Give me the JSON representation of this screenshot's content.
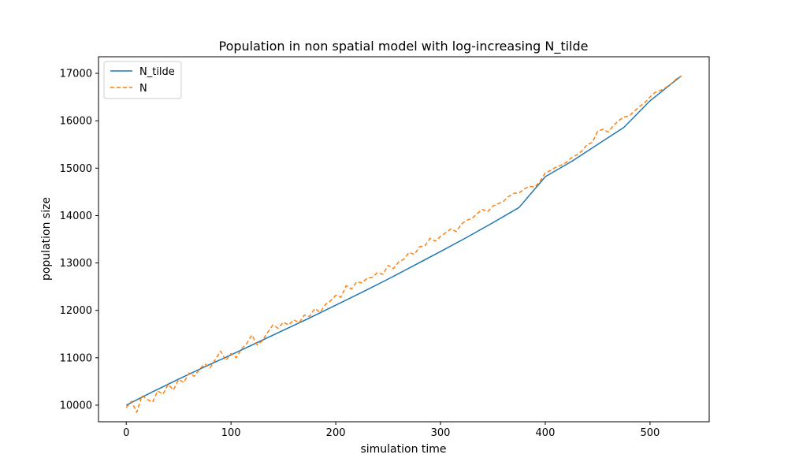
{
  "chart_data": {
    "type": "line",
    "title": "Population in non spatial model with log-increasing N_tilde",
    "xlabel": "simulation time",
    "ylabel": "population size",
    "xlim": [
      -26.5,
      556.5
    ],
    "ylim": [
      9650,
      17350
    ],
    "xticks": [
      0,
      100,
      200,
      300,
      400,
      500
    ],
    "yticks": [
      10000,
      11000,
      12000,
      13000,
      14000,
      15000,
      16000,
      17000
    ],
    "grid": false,
    "legend": {
      "position": "top-left"
    },
    "series": [
      {
        "name": "N_tilde",
        "color": "#1f77b4",
        "style": "solid",
        "x": [
          0,
          25,
          50,
          75,
          100,
          125,
          150,
          175,
          200,
          225,
          250,
          275,
          300,
          325,
          350,
          375,
          400,
          425,
          450,
          475,
          500,
          530
        ],
        "y": [
          10000,
          10280,
          10550,
          10810,
          11060,
          11320,
          11580,
          11840,
          12110,
          12380,
          12660,
          12950,
          13240,
          13540,
          13850,
          14170,
          14820,
          15140,
          15500,
          15860,
          16420,
          16950
        ]
      },
      {
        "name": "N",
        "color": "#ff7f0e",
        "style": "dashed",
        "x": [
          0,
          5,
          10,
          15,
          20,
          25,
          30,
          35,
          40,
          45,
          50,
          55,
          60,
          65,
          70,
          75,
          80,
          85,
          90,
          95,
          100,
          105,
          110,
          115,
          120,
          125,
          130,
          135,
          140,
          145,
          150,
          155,
          160,
          165,
          170,
          175,
          180,
          185,
          190,
          195,
          200,
          205,
          210,
          215,
          220,
          225,
          230,
          235,
          240,
          245,
          250,
          255,
          260,
          265,
          270,
          275,
          280,
          285,
          290,
          295,
          300,
          305,
          310,
          315,
          320,
          325,
          330,
          335,
          340,
          345,
          350,
          355,
          360,
          365,
          370,
          375,
          380,
          385,
          390,
          395,
          400,
          405,
          410,
          415,
          420,
          425,
          430,
          435,
          440,
          445,
          450,
          455,
          460,
          465,
          470,
          475,
          480,
          485,
          490,
          495,
          500,
          505,
          510,
          515,
          520,
          525,
          530
        ],
        "y": [
          9950,
          10080,
          9850,
          10200,
          10120,
          10060,
          10300,
          10230,
          10440,
          10320,
          10540,
          10480,
          10680,
          10610,
          10760,
          10870,
          10790,
          10960,
          11140,
          10940,
          11090,
          11000,
          11190,
          11300,
          11480,
          11270,
          11360,
          11540,
          11690,
          11620,
          11750,
          11690,
          11800,
          11740,
          11900,
          11870,
          12040,
          11960,
          12120,
          12200,
          12320,
          12280,
          12520,
          12450,
          12600,
          12580,
          12680,
          12700,
          12800,
          12760,
          12950,
          12880,
          13020,
          13080,
          13220,
          13180,
          13340,
          13360,
          13520,
          13460,
          13560,
          13640,
          13720,
          13660,
          13820,
          13900,
          13940,
          14040,
          14130,
          14080,
          14200,
          14250,
          14300,
          14400,
          14470,
          14480,
          14560,
          14620,
          14600,
          14720,
          14900,
          14950,
          15020,
          15060,
          15120,
          15220,
          15280,
          15360,
          15500,
          15540,
          15780,
          15820,
          15760,
          15900,
          16000,
          16080,
          16100,
          16200,
          16300,
          16380,
          16500,
          16600,
          16640,
          16700,
          16780,
          16880,
          16950
        ]
      }
    ]
  }
}
